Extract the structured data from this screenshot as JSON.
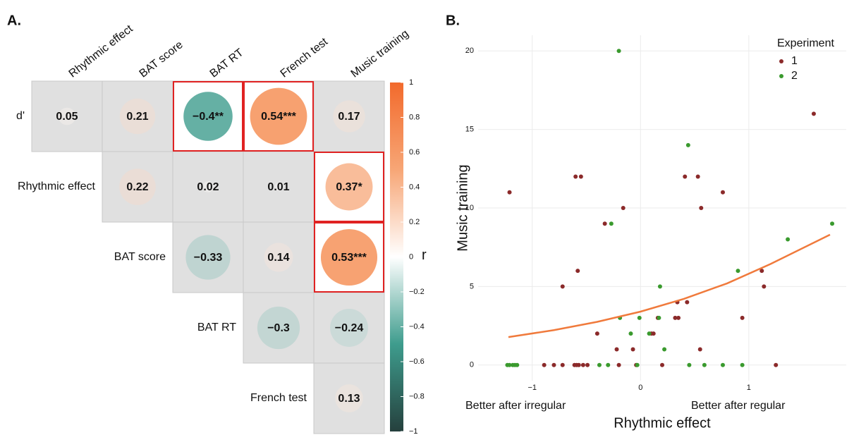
{
  "chart_data": [
    {
      "type": "correlogram",
      "panel_label": "A.",
      "x_categories": [
        "Rhythmic effect",
        "BAT score",
        "BAT RT",
        "French test",
        "Music training"
      ],
      "y_categories": [
        "d'",
        "Rhythmic effect",
        "BAT score",
        "BAT RT",
        "French test"
      ],
      "values": [
        [
          0.05,
          0.21,
          -0.4,
          0.54,
          0.17
        ],
        [
          null,
          0.22,
          0.02,
          0.01,
          0.37
        ],
        [
          null,
          null,
          -0.33,
          0.14,
          0.53
        ],
        [
          null,
          null,
          null,
          -0.3,
          -0.24
        ],
        [
          null,
          null,
          null,
          null,
          0.13
        ]
      ],
      "value_labels": [
        [
          "0.05",
          "0.21",
          "−0.4**",
          "0.54***",
          "0.17"
        ],
        [
          null,
          "0.22",
          "0.02",
          "0.01",
          "0.37*"
        ],
        [
          null,
          null,
          "−0.33",
          "0.14",
          "0.53***"
        ],
        [
          null,
          null,
          null,
          "−0.3",
          "−0.24"
        ],
        [
          null,
          null,
          null,
          null,
          "0.13"
        ]
      ],
      "clim": [
        -1,
        1
      ],
      "cticks": [
        {
          "value": -1,
          "label": "−1"
        },
        {
          "value": -0.8,
          "label": "−0.8"
        },
        {
          "value": -0.6,
          "label": "−0.6"
        },
        {
          "value": -0.4,
          "label": "−0.4"
        },
        {
          "value": -0.2,
          "label": "−0.2"
        },
        0,
        0.2,
        0.4,
        0.6,
        0.8,
        1
      ],
      "clabel": "r",
      "colors": [
        "#25403d",
        "#3e9c8d",
        "#ffffff",
        "#f7a676",
        "#f26a2c"
      ]
    },
    {
      "type": "scatter",
      "panel_label": "B.",
      "xlabel": "Rhythmic effect",
      "ylabel": "Music training",
      "annotations": [
        "Better after irregular",
        "Better after regular"
      ],
      "legend_title": "Experiment",
      "legend": "top-right",
      "grid": true,
      "xlim": [
        -1.5,
        1.9
      ],
      "ylim": [
        -1,
        21
      ],
      "xticks": [
        {
          "value": -1,
          "label": "−1"
        },
        0,
        1
      ],
      "yticks": [
        0,
        5,
        10,
        15,
        20
      ],
      "series": [
        {
          "name": "1",
          "color": "#8b2a2a",
          "x": [
            -1.21,
            -0.6,
            -0.55,
            -0.16,
            -0.33,
            -0.58,
            -0.72,
            0.41,
            0.53,
            0.56,
            0.76,
            1.6,
            1.12,
            1.14,
            0.94,
            0.34,
            0.43,
            0.32,
            0.35,
            0.1,
            0.12,
            -0.4,
            -0.22,
            -0.07,
            0.16,
            0.55,
            -0.89,
            -0.8,
            -0.72,
            -0.61,
            -0.59,
            -0.57,
            -0.53,
            -0.49,
            -0.2,
            -0.04,
            0.2,
            1.25
          ],
          "values": [
            11,
            12,
            12,
            10,
            9,
            6,
            5,
            12,
            12,
            10,
            11,
            16,
            6,
            5,
            3,
            4,
            4,
            3,
            3,
            2,
            2,
            2,
            1,
            1,
            3,
            1,
            0,
            0,
            0,
            0,
            0,
            0,
            0,
            0,
            0,
            0,
            0,
            0
          ]
        },
        {
          "name": "2",
          "color": "#3a9a2e",
          "x": [
            -0.2,
            0.44,
            -0.27,
            1.77,
            1.36,
            0.9,
            0.18,
            -0.19,
            -0.01,
            0.17,
            -0.09,
            0.08,
            0.22,
            -1.23,
            -1.21,
            -1.18,
            -1.16,
            -1.14,
            -0.38,
            -0.3,
            -0.03,
            0.45,
            0.59,
            0.76,
            0.94
          ],
          "values": [
            20,
            14,
            9,
            9,
            8,
            6,
            5,
            3,
            3,
            3,
            2,
            2,
            1,
            0,
            0,
            0,
            0,
            0,
            0,
            0,
            0,
            0,
            0,
            0,
            0
          ]
        }
      ],
      "fit": {
        "color": "#f07a3c",
        "x": [
          -1.22,
          -0.8,
          -0.4,
          0,
          0.4,
          0.8,
          1.2,
          1.75
        ],
        "values": [
          1.78,
          2.22,
          2.75,
          3.4,
          4.21,
          5.2,
          6.43,
          8.3
        ]
      }
    }
  ]
}
